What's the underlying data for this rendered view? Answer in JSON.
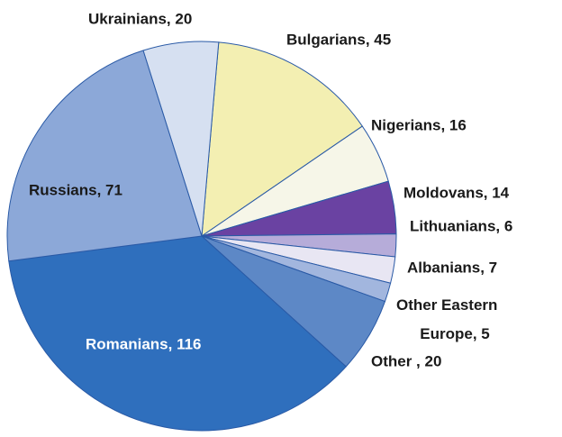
{
  "chart_data": {
    "type": "pie",
    "value_labels": [
      "Bulgarians, 45",
      "Nigerians, 16",
      "Moldovans, 14",
      "Lithuanians, 6",
      "Albanians, 7",
      "Other Eastern\nEurope, 5",
      "Other , 20",
      "Romanians, 116",
      "Russians, 71",
      "Ukrainians, 20"
    ],
    "values": [
      45,
      16,
      14,
      6,
      7,
      5,
      20,
      116,
      71,
      20
    ],
    "colors": [
      "#f3efb2",
      "#f6f6e8",
      "#6a42a2",
      "#b6acd9",
      "#e8e6f3",
      "#a2b6de",
      "#5d88c6",
      "#2f6fbd",
      "#8ca8d8",
      "#d6e0f1"
    ]
  }
}
